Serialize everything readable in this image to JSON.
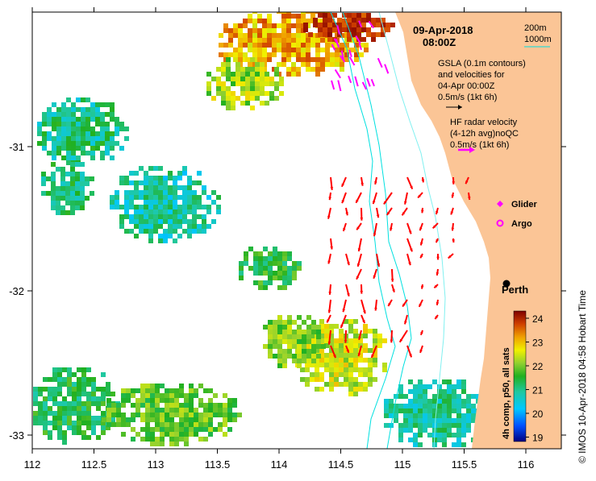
{
  "map": {
    "date": "09-Apr-2018",
    "time": "08:00Z",
    "depth_legend": [
      "200m",
      "1000m"
    ],
    "gsla_label": [
      "GSLA (0.1m contours)",
      "and velocities for",
      "04-Apr 00:00Z"
    ],
    "gsla_scale_label": "0.5m/s (1kt 6h)",
    "hf_label": [
      "HF radar velocity",
      "(4-12h avg)noQC"
    ],
    "hf_scale_label": "0.5m/s (1kt 6h)",
    "glider_label": "Glider",
    "argo_label": "Argo",
    "city_label": "Perth",
    "colorbar_title": "4h comp, p50, all sats",
    "colorbar_ticks": [
      "24",
      "23",
      "22",
      "21",
      "20",
      "19"
    ],
    "credit": "© IMOS 10-Apr-2018 04:58 Hobart Time",
    "x_ticks": [
      "112",
      "112.5",
      "113",
      "113.5",
      "114",
      "114.5",
      "115",
      "115.5",
      "116"
    ],
    "y_ticks": [
      "-31",
      "-32",
      "-33"
    ],
    "colors": {
      "land": "#fbc596",
      "hf_arrow": "#ff0000",
      "glider_arrow": "#ff00ff",
      "bathy_200": "#000000",
      "bathy_1000": "#00e0e0",
      "sst_low": "#000080",
      "sst_high": "#8b0000"
    }
  }
}
